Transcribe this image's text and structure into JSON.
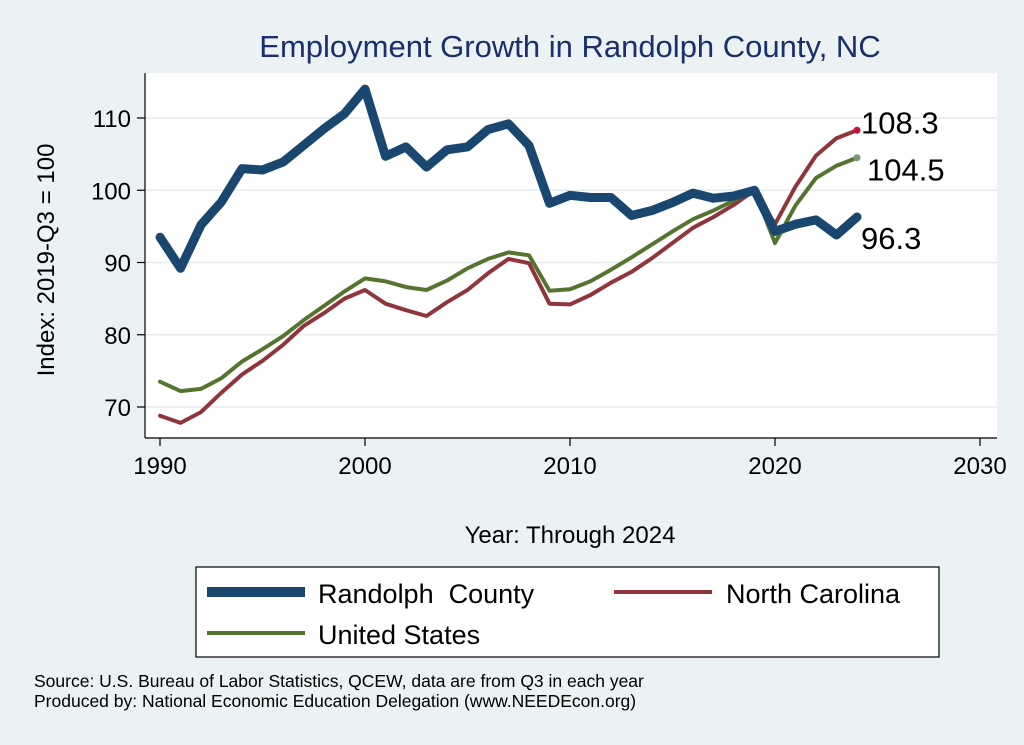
{
  "chart_data": {
    "type": "line",
    "title": "Employment Growth in Randolph County, NC",
    "xlabel": "Year: Through 2024",
    "ylabel": "Index: 2019-Q3 = 100",
    "xlim": [
      1990,
      2030
    ],
    "ylim": [
      65,
      116
    ],
    "x_ticks": [
      1990,
      2000,
      2010,
      2020,
      2030
    ],
    "y_ticks": [
      70,
      80,
      90,
      100,
      110
    ],
    "grid": true,
    "legend_position": "bottom",
    "x": [
      1990,
      1991,
      1992,
      1993,
      1994,
      1995,
      1996,
      1997,
      1998,
      1999,
      2000,
      2001,
      2002,
      2003,
      2004,
      2005,
      2006,
      2007,
      2008,
      2009,
      2010,
      2011,
      2012,
      2013,
      2014,
      2015,
      2016,
      2017,
      2018,
      2019,
      2020,
      2021,
      2022,
      2023,
      2024
    ],
    "series": [
      {
        "name": "Randolph  County",
        "color": "#1a476f",
        "values": [
          93.5,
          89.2,
          95.2,
          98.4,
          103.0,
          102.8,
          103.9,
          106.2,
          108.5,
          110.6,
          114.0,
          104.7,
          106.0,
          103.2,
          105.6,
          106.0,
          108.4,
          109.2,
          106.2,
          98.2,
          99.3,
          99.0,
          99.0,
          96.5,
          97.2,
          98.3,
          99.6,
          98.9,
          99.2,
          100.0,
          94.3,
          95.3,
          95.9,
          93.8,
          96.3
        ],
        "end_label": "96.3"
      },
      {
        "name": "North Carolina",
        "color": "#90353b",
        "values": [
          68.8,
          67.8,
          69.3,
          72.0,
          74.5,
          76.4,
          78.6,
          81.2,
          83.0,
          85.0,
          86.2,
          84.3,
          83.4,
          82.6,
          84.5,
          86.2,
          88.5,
          90.5,
          89.9,
          84.3,
          84.2,
          85.5,
          87.2,
          88.7,
          90.6,
          92.7,
          94.8,
          96.3,
          98.0,
          100.0,
          95.3,
          100.5,
          104.8,
          107.2,
          108.3
        ],
        "end_label": "108.3"
      },
      {
        "name": "United States",
        "color": "#55752f",
        "values": [
          73.5,
          72.2,
          72.5,
          74.0,
          76.3,
          78.0,
          79.8,
          82.0,
          84.0,
          86.0,
          87.8,
          87.4,
          86.6,
          86.2,
          87.5,
          89.2,
          90.5,
          91.4,
          91.0,
          86.1,
          86.3,
          87.4,
          89.0,
          90.7,
          92.5,
          94.3,
          96.0,
          97.2,
          98.6,
          100.0,
          92.7,
          97.9,
          101.7,
          103.4,
          104.5
        ],
        "end_label": "104.5"
      }
    ]
  },
  "footer": {
    "source": "Source: U.S. Bureau of Labor Statistics, QCEW, data are from Q3 in each year",
    "produced_by": "Produced by: National Economic Education Delegation (www.NEEDEcon.org)"
  }
}
